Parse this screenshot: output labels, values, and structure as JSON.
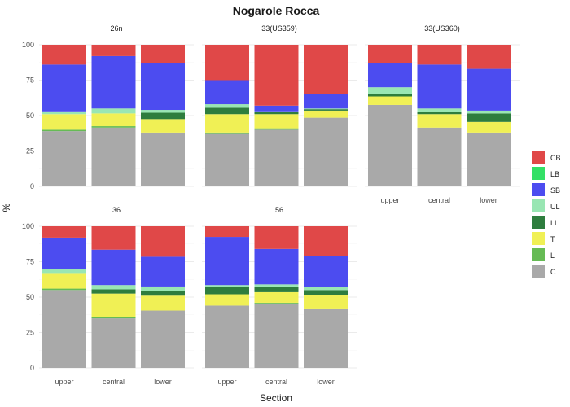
{
  "chart_data": {
    "type": "bar",
    "stacked": true,
    "title": "Nogarole Rocca",
    "xlabel": "Section",
    "ylabel": "%",
    "ylim": [
      0,
      100
    ],
    "yticks": [
      0,
      25,
      50,
      75,
      100
    ],
    "categories": [
      "upper",
      "central",
      "lower"
    ],
    "legend": {
      "position": "right",
      "entries": [
        "CB",
        "LB",
        "SB",
        "UL",
        "LL",
        "T",
        "L",
        "C"
      ]
    },
    "colors": {
      "CB": "#e04848",
      "LB": "#33e066",
      "SB": "#4c4cf0",
      "UL": "#99e6b3",
      "LL": "#2e7d3e",
      "T": "#f0f055",
      "L": "#66bb55",
      "C": "#a9a9a9"
    },
    "panels": [
      {
        "title": "26n",
        "bars": [
          {
            "category": "upper",
            "C": 39,
            "L": 1,
            "T": 11,
            "LL": 0,
            "UL": 2,
            "SB": 33,
            "LB": 0,
            "CB": 14
          },
          {
            "category": "central",
            "C": 41.5,
            "L": 1,
            "T": 9,
            "LL": 0,
            "UL": 3.5,
            "SB": 37,
            "LB": 0,
            "CB": 8
          },
          {
            "category": "lower",
            "C": 38,
            "L": 0,
            "T": 9.5,
            "LL": 4.5,
            "UL": 2,
            "SB": 33,
            "LB": 0,
            "CB": 13
          }
        ]
      },
      {
        "title": "33(US359)",
        "bars": [
          {
            "category": "upper",
            "C": 37,
            "L": 1,
            "T": 13,
            "LL": 4.5,
            "UL": 2.5,
            "SB": 17,
            "LB": 0,
            "CB": 25
          },
          {
            "category": "central",
            "C": 40,
            "L": 1,
            "T": 10,
            "LL": 1.5,
            "UL": 0.5,
            "SB": 4,
            "LB": 0,
            "CB": 43
          },
          {
            "category": "lower",
            "C": 48.5,
            "L": 0,
            "T": 5,
            "LL": 1,
            "UL": 0.5,
            "SB": 10.5,
            "LB": 0,
            "CB": 34.5
          }
        ]
      },
      {
        "title": "33(US360)",
        "bars": [
          {
            "category": "upper",
            "C": 57.5,
            "L": 0,
            "T": 6,
            "LL": 2,
            "UL": 4.5,
            "SB": 17,
            "LB": 0,
            "CB": 13
          },
          {
            "category": "central",
            "C": 41.5,
            "L": 0,
            "T": 9.5,
            "LL": 1.5,
            "UL": 2.5,
            "SB": 31,
            "LB": 0,
            "CB": 14
          },
          {
            "category": "lower",
            "C": 38,
            "L": 0,
            "T": 7.5,
            "LL": 6,
            "UL": 2,
            "SB": 29.5,
            "LB": 0,
            "CB": 17
          }
        ]
      },
      {
        "title": "36",
        "bars": [
          {
            "category": "upper",
            "C": 55,
            "L": 1,
            "T": 11,
            "LL": 0,
            "UL": 3,
            "SB": 22,
            "LB": 0,
            "CB": 8
          },
          {
            "category": "central",
            "C": 35,
            "L": 1,
            "T": 16.5,
            "LL": 3,
            "UL": 3,
            "SB": 25,
            "LB": 0,
            "CB": 16.5
          },
          {
            "category": "lower",
            "C": 40.5,
            "L": 0,
            "T": 10.5,
            "LL": 3.5,
            "UL": 3,
            "SB": 21,
            "LB": 0,
            "CB": 21.5
          }
        ]
      },
      {
        "title": "56",
        "bars": [
          {
            "category": "upper",
            "C": 44,
            "L": 0,
            "T": 8,
            "LL": 5,
            "UL": 1.5,
            "SB": 34,
            "LB": 0,
            "CB": 7.5
          },
          {
            "category": "central",
            "C": 45.5,
            "L": 0.5,
            "T": 7.5,
            "LL": 4,
            "UL": 1.5,
            "SB": 25,
            "LB": 0,
            "CB": 16
          },
          {
            "category": "lower",
            "C": 42,
            "L": 0,
            "T": 9.5,
            "LL": 3.5,
            "UL": 2,
            "SB": 22,
            "LB": 0,
            "CB": 21
          }
        ]
      }
    ]
  }
}
